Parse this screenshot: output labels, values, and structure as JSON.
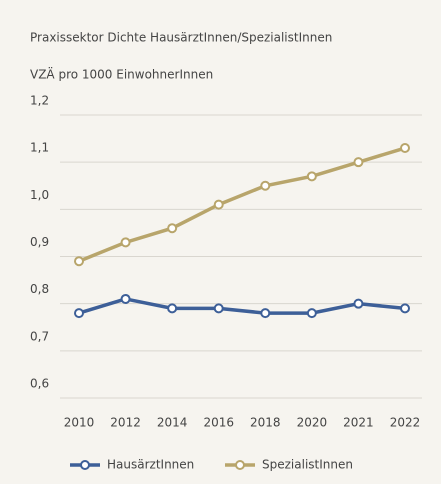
{
  "chart_data": {
    "type": "line",
    "title": "Praxissektor Dichte HausärztInnen/SpezialistInnen",
    "subtitle": "VZÄ pro 1000 EinwohnerInnen",
    "categories": [
      "2010",
      "2012",
      "2014",
      "2016",
      "2018",
      "2020",
      "2021",
      "2022"
    ],
    "series": [
      {
        "name": "HausärztInnen",
        "color": "#3d5f98",
        "values": [
          0.78,
          0.81,
          0.79,
          0.79,
          0.78,
          0.78,
          0.8,
          0.79
        ]
      },
      {
        "name": "SpezialistInnen",
        "color": "#b8a56b",
        "values": [
          0.89,
          0.93,
          0.96,
          1.01,
          1.05,
          1.07,
          1.1,
          1.13
        ]
      }
    ],
    "ylim": [
      0.6,
      1.2
    ],
    "yticks": [
      {
        "value": 0.6,
        "label": "0,6"
      },
      {
        "value": 0.7,
        "label": "0,7"
      },
      {
        "value": 0.8,
        "label": "0,8"
      },
      {
        "value": 0.9,
        "label": "0,9"
      },
      {
        "value": 1.0,
        "label": "1,0"
      },
      {
        "value": 1.1,
        "label": "1,1"
      },
      {
        "value": 1.2,
        "label": "1,2"
      }
    ],
    "grid": true,
    "legend": "bottom"
  }
}
